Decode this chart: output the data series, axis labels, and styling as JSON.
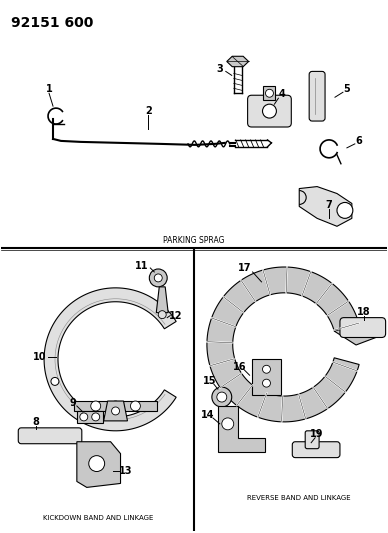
{
  "title": "92151 600",
  "bg_color": "#ffffff",
  "line_color": "#000000",
  "label_color": "#000000",
  "parking_sprag_label": "PARKING SPRAG",
  "kickdown_label": "KICKDOWN BAND AND LINKAGE",
  "reverse_label": "REVERSE BAND AND LINKAGE",
  "gray_fill": "#c8c8c8",
  "light_gray": "#e0e0e0",
  "dark_gray": "#888888"
}
